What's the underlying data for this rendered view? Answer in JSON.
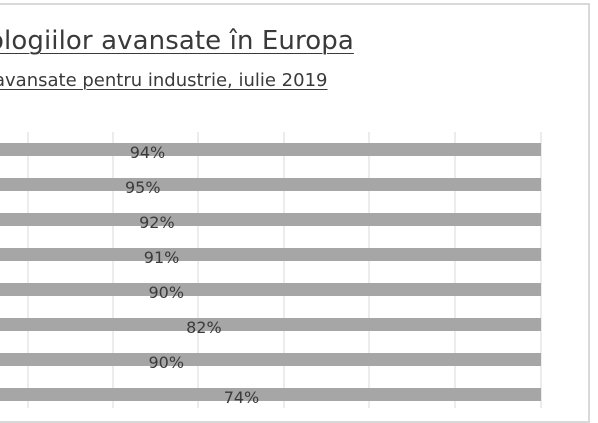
{
  "chart_data": {
    "type": "bar",
    "orientation": "horizontal",
    "title": "ologiilor avansate în Europa",
    "subtitle": "avansate pentru industrie, iulie 2019",
    "values": [
      94,
      95,
      92,
      91,
      90,
      82,
      90,
      74
    ],
    "labels": [
      "94%",
      "95%",
      "92%",
      "91%",
      "90%",
      "82%",
      "90%",
      "74%"
    ],
    "grid": true,
    "bar_color": "#a6a6a6",
    "grid_color": "#d9d9d9"
  }
}
